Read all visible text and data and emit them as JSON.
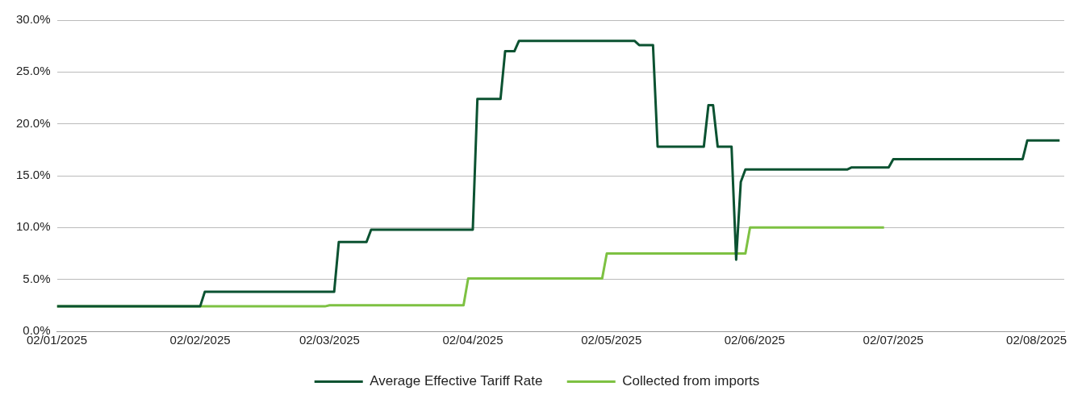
{
  "chart_data": {
    "type": "line",
    "legend": "bottom",
    "grid": "y",
    "marker": "none",
    "line_style": "solid",
    "xlim": [
      "2025-01-02",
      "2025-08-08"
    ],
    "xticks": [
      {
        "value": "2025-01-02",
        "label": "02/01/2025"
      },
      {
        "value": "2025-02-02",
        "label": "02/02/2025"
      },
      {
        "value": "2025-03-02",
        "label": "02/03/2025"
      },
      {
        "value": "2025-04-02",
        "label": "02/04/2025"
      },
      {
        "value": "2025-05-02",
        "label": "02/05/2025"
      },
      {
        "value": "2025-06-02",
        "label": "02/06/2025"
      },
      {
        "value": "2025-07-02",
        "label": "02/07/2025"
      },
      {
        "value": "2025-08-02",
        "label": "02/08/2025"
      }
    ],
    "ylim": [
      0,
      30
    ],
    "yticks": [
      {
        "value": 0,
        "label": "0.0%"
      },
      {
        "value": 5,
        "label": "5.0%"
      },
      {
        "value": 10,
        "label": "10.0%"
      },
      {
        "value": 15,
        "label": "15.0%"
      },
      {
        "value": 20,
        "label": "20.0%"
      },
      {
        "value": 25,
        "label": "25.0%"
      },
      {
        "value": 30,
        "label": "30.0%"
      }
    ],
    "series": [
      {
        "name": "Average Effective Tariff Rate",
        "color": "#0b5231",
        "x": [
          "2025-01-02",
          "2025-02-02",
          "2025-02-03",
          "2025-03-03",
          "2025-03-04",
          "2025-03-10",
          "2025-03-11",
          "2025-04-02",
          "2025-04-03",
          "2025-04-08",
          "2025-04-09",
          "2025-04-11",
          "2025-04-12",
          "2025-05-07",
          "2025-05-08",
          "2025-05-11",
          "2025-05-12",
          "2025-05-22",
          "2025-05-23",
          "2025-05-24",
          "2025-05-25",
          "2025-05-28",
          "2025-05-29",
          "2025-05-30",
          "2025-05-31",
          "2025-06-22",
          "2025-06-23",
          "2025-07-01",
          "2025-07-02",
          "2025-07-30",
          "2025-07-31",
          "2025-08-07"
        ],
        "values": [
          2.4,
          2.4,
          3.8,
          3.8,
          8.6,
          8.6,
          9.8,
          9.8,
          22.4,
          22.4,
          27.0,
          27.0,
          28.0,
          28.0,
          27.6,
          27.6,
          17.8,
          17.8,
          21.8,
          21.8,
          17.8,
          17.8,
          6.9,
          14.4,
          15.6,
          15.6,
          15.8,
          15.8,
          16.6,
          16.6,
          18.4,
          18.4
        ]
      },
      {
        "name": "Collected from imports",
        "color": "#7dc142",
        "x": [
          "2025-01-02",
          "2025-03-01",
          "2025-03-02",
          "2025-03-31",
          "2025-04-01",
          "2025-04-30",
          "2025-05-01",
          "2025-05-31",
          "2025-06-01",
          "2025-06-30"
        ],
        "values": [
          2.4,
          2.4,
          2.5,
          2.5,
          5.1,
          5.1,
          7.5,
          7.5,
          10.0,
          10.0
        ]
      }
    ]
  }
}
